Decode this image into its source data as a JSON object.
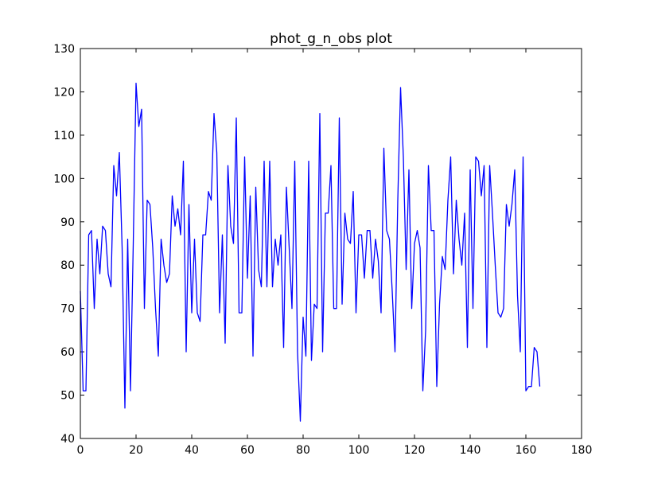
{
  "chart_data": {
    "type": "line",
    "title": "phot_g_n_obs plot",
    "xlabel": "",
    "ylabel": "",
    "xlim": [
      0,
      180
    ],
    "ylim": [
      40,
      130
    ],
    "xticks": [
      0,
      20,
      40,
      60,
      80,
      100,
      120,
      140,
      160,
      180
    ],
    "yticks": [
      40,
      50,
      60,
      70,
      80,
      90,
      100,
      110,
      120,
      130
    ],
    "xtick_labels": [
      "0",
      "20",
      "40",
      "60",
      "80",
      "100",
      "120",
      "140",
      "160",
      "180"
    ],
    "ytick_labels": [
      "40",
      "50",
      "60",
      "70",
      "80",
      "90",
      "100",
      "110",
      "120",
      "130"
    ],
    "grid": false,
    "line_color": "#0000ff",
    "x": [
      0,
      1,
      2,
      3,
      4,
      5,
      6,
      7,
      8,
      9,
      10,
      11,
      12,
      13,
      14,
      15,
      16,
      17,
      18,
      19,
      20,
      21,
      22,
      23,
      24,
      25,
      26,
      27,
      28,
      29,
      30,
      31,
      32,
      33,
      34,
      35,
      36,
      37,
      38,
      39,
      40,
      41,
      42,
      43,
      44,
      45,
      46,
      47,
      48,
      49,
      50,
      51,
      52,
      53,
      54,
      55,
      56,
      57,
      58,
      59,
      60,
      61,
      62,
      63,
      64,
      65,
      66,
      67,
      68,
      69,
      70,
      71,
      72,
      73,
      74,
      75,
      76,
      77,
      78,
      79,
      80,
      81,
      82,
      83,
      84,
      85,
      86,
      87,
      88,
      89,
      90,
      91,
      92,
      93,
      94,
      95,
      96,
      97,
      98,
      99,
      100,
      101,
      102,
      103,
      104,
      105,
      106,
      107,
      108,
      109,
      110,
      111,
      112,
      113,
      114,
      115,
      116,
      117,
      118,
      119,
      120,
      121,
      122,
      123,
      124,
      125,
      126,
      127,
      128,
      129,
      130,
      131,
      132,
      133,
      134,
      135,
      136,
      137,
      138,
      139,
      140,
      141,
      142,
      143,
      144,
      145,
      146,
      147,
      148,
      149,
      150,
      151,
      152,
      153,
      154,
      155,
      156,
      157,
      158,
      159,
      160,
      161,
      162,
      163,
      164,
      165
    ],
    "values": [
      74,
      51,
      51,
      87,
      88,
      70,
      86,
      78,
      89,
      88,
      78,
      75,
      103,
      96,
      106,
      84,
      47,
      86,
      51,
      85,
      122,
      112,
      116,
      70,
      95,
      94,
      84,
      70,
      59,
      86,
      80,
      76,
      78,
      96,
      89,
      93,
      87,
      104,
      60,
      94,
      69,
      86,
      69,
      67,
      87,
      87,
      97,
      95,
      115,
      106,
      69,
      87,
      62,
      103,
      89,
      85,
      114,
      69,
      69,
      105,
      77,
      96,
      59,
      98,
      79,
      75,
      104,
      75,
      104,
      75,
      86,
      80,
      87,
      61,
      98,
      84,
      70,
      104,
      60,
      44,
      68,
      59,
      104,
      58,
      71,
      70,
      115,
      60,
      92,
      92,
      103,
      70,
      70,
      114,
      71,
      92,
      86,
      85,
      97,
      69,
      87,
      87,
      77,
      88,
      88,
      77,
      86,
      81,
      69,
      107,
      88,
      86,
      74,
      60,
      95,
      121,
      105,
      79,
      102,
      70,
      85,
      88,
      84,
      51,
      65,
      103,
      88,
      88,
      52,
      71,
      82,
      79,
      95,
      105,
      78,
      95,
      86,
      80,
      92,
      61,
      102,
      70,
      105,
      104,
      96,
      103,
      61,
      103,
      92,
      80,
      69,
      68,
      70,
      94,
      89,
      94,
      102,
      73,
      60,
      105,
      51,
      52,
      52,
      61,
      60,
      52
    ]
  }
}
